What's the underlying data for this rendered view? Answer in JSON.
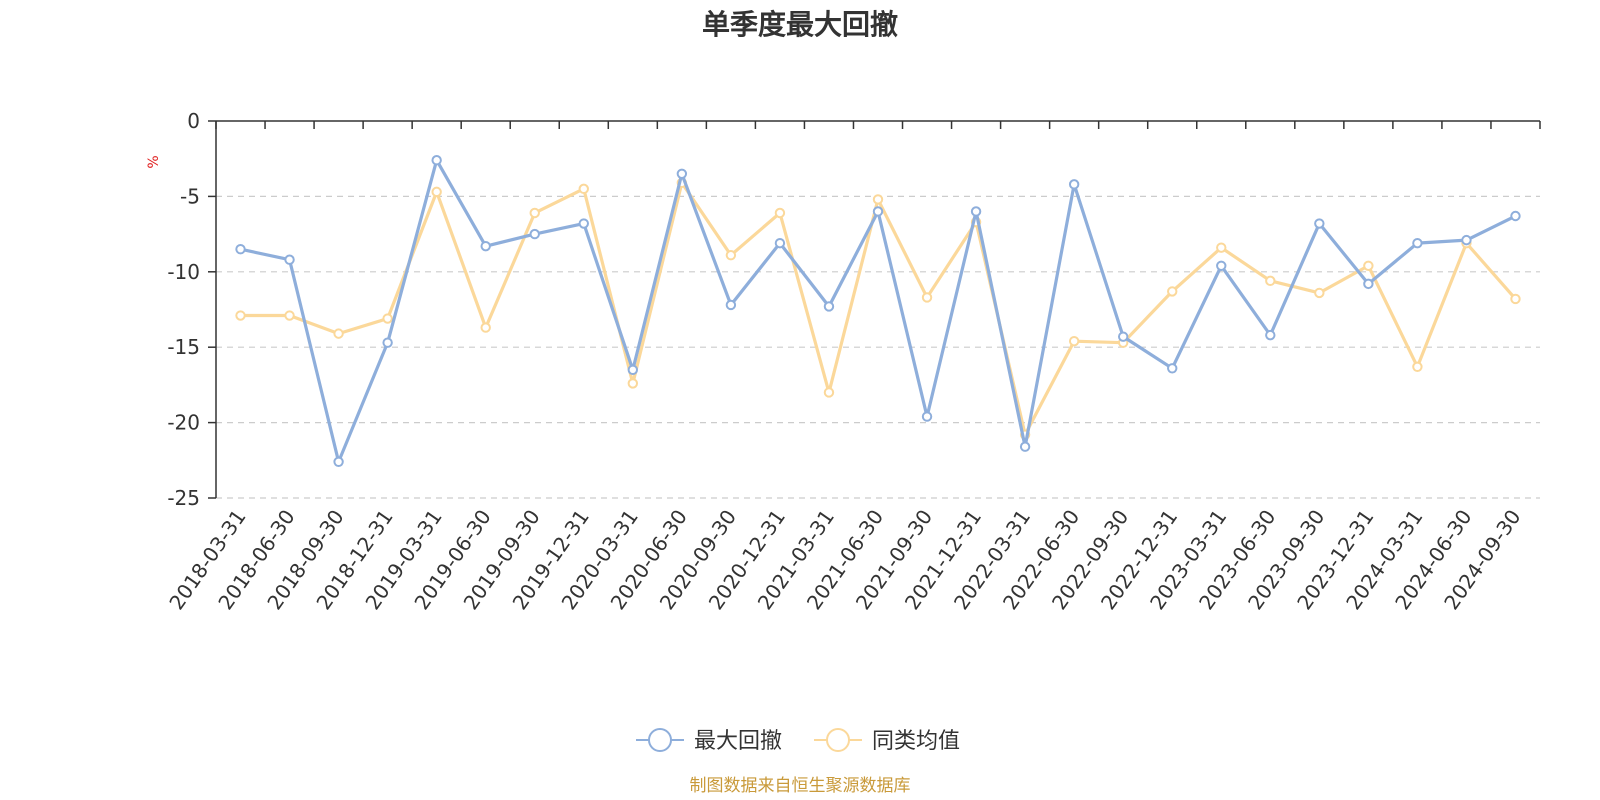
{
  "chart_data": {
    "type": "line",
    "title": "单季度最大回撤",
    "ylabel": "%",
    "ylim": [
      -25,
      0
    ],
    "yticks": [
      0,
      -5,
      -10,
      -15,
      -20,
      -25
    ],
    "ytick_labels": [
      "0",
      "-5",
      "-10",
      "-15",
      "-20",
      "-25"
    ],
    "grid": true,
    "legend_position": "bottom-center",
    "categories": [
      "2018-03-31",
      "2018-06-30",
      "2018-09-30",
      "2018-12-31",
      "2019-03-31",
      "2019-06-30",
      "2019-09-30",
      "2019-12-31",
      "2020-03-31",
      "2020-06-30",
      "2020-09-30",
      "2020-12-31",
      "2021-03-31",
      "2021-06-30",
      "2021-09-30",
      "2021-12-31",
      "2022-03-31",
      "2022-06-30",
      "2022-09-30",
      "2022-12-31",
      "2023-03-31",
      "2023-06-30",
      "2023-09-30",
      "2023-12-31",
      "2024-03-31",
      "2024-06-30",
      "2024-09-30"
    ],
    "series": [
      {
        "name": "最大回撤",
        "color": "#8eaedb",
        "values": [
          -8.5,
          -9.2,
          -22.6,
          -14.7,
          -2.6,
          -8.3,
          -7.5,
          -6.8,
          -16.5,
          -3.5,
          -12.2,
          -8.1,
          -12.3,
          -6.0,
          -19.6,
          -6.0,
          -21.6,
          -4.2,
          -14.3,
          -16.4,
          -9.6,
          -14.2,
          -6.8,
          -10.8,
          -8.1,
          -7.9,
          -6.3
        ]
      },
      {
        "name": "同类均值",
        "color": "#fbd89a",
        "values": [
          -12.9,
          -12.9,
          -14.1,
          -13.1,
          -4.7,
          -13.7,
          -6.1,
          -4.5,
          -17.4,
          -4.1,
          -8.9,
          -6.1,
          -18.0,
          -5.2,
          -11.7,
          -6.7,
          -20.8,
          -14.6,
          -14.7,
          -11.3,
          -8.4,
          -10.6,
          -11.4,
          -9.6,
          -16.3,
          -8.1,
          -11.8
        ]
      }
    ],
    "source_note": "制图数据来自恒生聚源数据库",
    "source_color": "#c99a3a",
    "unit_color": "#e02020"
  }
}
